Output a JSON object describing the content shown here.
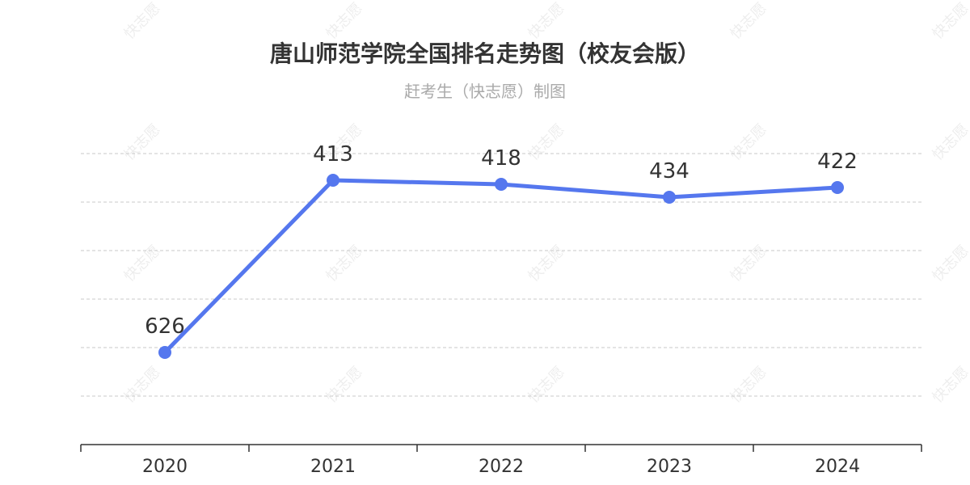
{
  "chart_data": {
    "type": "line",
    "title": "唐山师范学院全国排名走势图（校友会版）",
    "subtitle": "赶考生（快志愿）制图",
    "categories": [
      "2020",
      "2021",
      "2022",
      "2023",
      "2024"
    ],
    "series": [
      {
        "values": [
          626,
          413,
          418,
          434,
          422
        ]
      }
    ],
    "y_inverted": true,
    "ylim": [
      380,
      680
    ],
    "grid": "horizontal-dashed",
    "legend": "none",
    "line_color": "#5577ee",
    "watermark_text": "快志愿"
  }
}
